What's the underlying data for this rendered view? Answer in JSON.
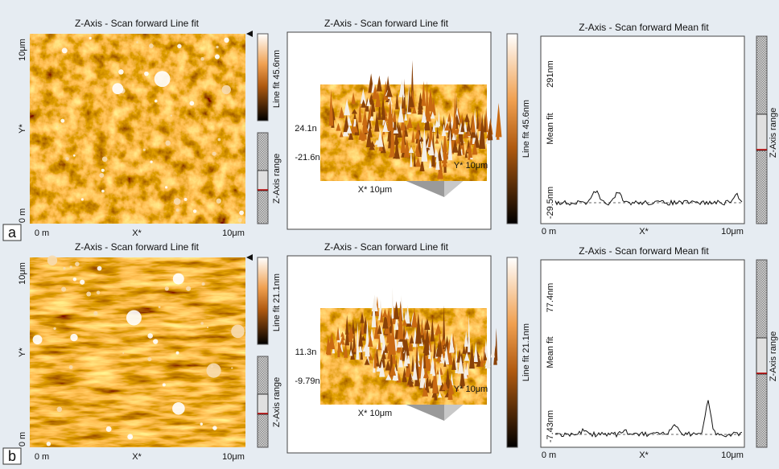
{
  "panels": [
    {
      "label": "a",
      "image": {
        "title": "Z-Axis - Scan forward   Line fit",
        "y_top": "10μm",
        "y_mid": "Y*",
        "y_bottom": "0 m",
        "x_left": "0 m",
        "x_mid": "X*",
        "x_right": "10μm",
        "colorbar_label": "Line fit 45.6nm",
        "range_label": "Z-Axis range"
      },
      "view3d": {
        "title": "Z-Axis - Scan forward   Line fit",
        "z_top": "24.1n",
        "z_bottom": "-21.6n",
        "x_label": "X* 10μm",
        "y_label": "Y* 10μm",
        "colorbar_label": "Line fit 45.6nm"
      },
      "profile": {
        "title": "Z-Axis - Scan forward   Mean fit",
        "y_top": "291nm",
        "y_label": "Mean fit",
        "y_bottom": "-29.5nm",
        "x_left": "0 m",
        "x_mid": "X*",
        "x_right": "10μm",
        "range_label": "Z-Axis range"
      }
    },
    {
      "label": "b",
      "image": {
        "title": "Z-Axis - Scan forward   Line fit",
        "y_top": "10μm",
        "y_mid": "Y*",
        "y_bottom": "0 m",
        "x_left": "0 m",
        "x_mid": "X*",
        "x_right": "10μm",
        "colorbar_label": "Line fit 21.1nm",
        "range_label": "Z-Axis range"
      },
      "view3d": {
        "title": "Z-Axis - Scan forward   Line fit",
        "z_top": "11.3n",
        "z_bottom": "-9.79n",
        "x_label": "X* 10μm",
        "y_label": "Y* 10μm",
        "colorbar_label": "Line fit 21.1nm"
      },
      "profile": {
        "title": "Z-Axis - Scan forward   Mean fit",
        "y_top": "77.4nm",
        "y_label": "Mean fit",
        "y_bottom": "-7.43nm",
        "x_left": "0 m",
        "x_mid": "X*",
        "x_right": "10μm",
        "range_label": "Z-Axis range"
      }
    }
  ]
}
